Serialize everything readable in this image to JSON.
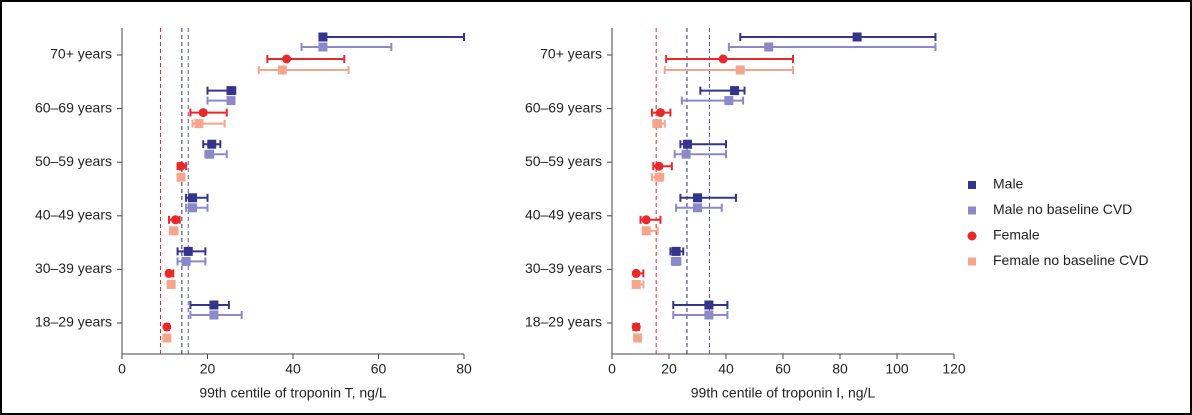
{
  "chart_data": [
    {
      "type": "forest",
      "xlabel": "99th centile of troponin T, ng/L",
      "categories": [
        "70+ years",
        "60–69 years",
        "50–59 years",
        "40–49 years",
        "30–39 years",
        "18–29 years"
      ],
      "xlim": [
        0,
        80
      ],
      "xticks": [
        0,
        20,
        40,
        60,
        80
      ],
      "reference_lines": [
        {
          "value": 9,
          "color": "#e8282b"
        },
        {
          "value": 14,
          "color": "#2e2e7a"
        },
        {
          "value": 15.5,
          "color": "#5a58b8"
        }
      ],
      "series": [
        {
          "color": "#34348a",
          "marker": "square",
          "values": [
            47,
            25.5,
            21,
            16.5,
            15.5,
            21.5
          ],
          "lower": [
            46.5,
            20,
            19,
            15,
            13,
            16
          ],
          "upper": [
            80,
            26.5,
            23,
            20,
            19.5,
            25
          ]
        },
        {
          "color": "#8b89c9",
          "marker": "square",
          "values": [
            47,
            25.5,
            20.5,
            16.5,
            15,
            21.5
          ],
          "lower": [
            42,
            20,
            19.5,
            15,
            13,
            16
          ],
          "upper": [
            63,
            26,
            24.5,
            20,
            19.5,
            28
          ]
        },
        {
          "color": "#e8282b",
          "marker": "circle",
          "values": [
            38.5,
            19,
            13.8,
            12.5,
            11,
            10.5
          ],
          "lower": [
            34,
            16,
            13,
            11,
            10.5,
            10
          ],
          "upper": [
            52,
            24.5,
            15,
            13.5,
            12,
            11
          ]
        },
        {
          "color": "#f4a58c",
          "marker": "square",
          "values": [
            37.5,
            18,
            13.8,
            12,
            11.5,
            10.5
          ],
          "lower": [
            32,
            16.5,
            13,
            11.5,
            11,
            10
          ],
          "upper": [
            53,
            24,
            14.5,
            13,
            12,
            11
          ]
        }
      ]
    },
    {
      "type": "forest",
      "xlabel": "99th centile of troponin  I, ng/L",
      "categories": [
        "70+ years",
        "60–69 years",
        "50–59 years",
        "40–49 years",
        "30–39 years",
        "18–29 years"
      ],
      "xlim": [
        0,
        120
      ],
      "xticks": [
        0,
        20,
        40,
        60,
        80,
        100,
        120
      ],
      "reference_lines": [
        {
          "value": 15.5,
          "color": "#e8282b"
        },
        {
          "value": 26.3,
          "color": "#2e2e7a"
        },
        {
          "value": 34.2,
          "color": "#5a58b8"
        }
      ],
      "legend": "right",
      "series": [
        {
          "name": "Male",
          "color": "#34348a",
          "marker": "square",
          "values": [
            86,
            43,
            26.5,
            30,
            22.5,
            34
          ],
          "lower": [
            45,
            31,
            24,
            24,
            20.5,
            21.5
          ],
          "upper": [
            113.5,
            46.5,
            40,
            43.5,
            25,
            40.5
          ]
        },
        {
          "name": "Male no baseline CVD",
          "color": "#8b89c9",
          "marker": "square",
          "values": [
            55,
            41,
            26,
            30,
            22.5,
            34
          ],
          "lower": [
            41,
            24.5,
            22,
            22.5,
            21,
            21.5
          ],
          "upper": [
            113.5,
            46,
            40,
            38.5,
            24,
            40.5
          ]
        },
        {
          "name": "Female",
          "color": "#e8282b",
          "marker": "circle",
          "values": [
            39,
            17,
            16.5,
            12,
            8.5,
            8.5
          ],
          "lower": [
            19,
            14,
            14.5,
            10,
            8,
            7.5
          ],
          "upper": [
            63.5,
            20.5,
            21,
            17,
            11,
            9.5
          ]
        },
        {
          "name": "Female no baseline CVD",
          "color": "#f4a58c",
          "marker": "square",
          "values": [
            45,
            16,
            16.5,
            12,
            8.5,
            9
          ],
          "lower": [
            18.5,
            14.5,
            14,
            11,
            8,
            8
          ],
          "upper": [
            63.5,
            18.5,
            18,
            16,
            11,
            10
          ]
        }
      ]
    }
  ]
}
